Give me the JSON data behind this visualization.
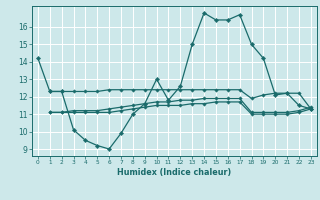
{
  "xlabel": "Humidex (Indice chaleur)",
  "background_color": "#cde8ea",
  "grid_color": "#ffffff",
  "line_color": "#1a6b6b",
  "xlim": [
    -0.5,
    23.5
  ],
  "ylim": [
    8.6,
    17.2
  ],
  "yticks": [
    9,
    10,
    11,
    12,
    13,
    14,
    15,
    16
  ],
  "xticks": [
    0,
    1,
    2,
    3,
    4,
    5,
    6,
    7,
    8,
    9,
    10,
    11,
    12,
    13,
    14,
    15,
    16,
    17,
    18,
    19,
    20,
    21,
    22,
    23
  ],
  "curve1_x": [
    0,
    1,
    2,
    3,
    4,
    5,
    6,
    7,
    8,
    9,
    10,
    11,
    12,
    13,
    14,
    15,
    16,
    17,
    18,
    19,
    20,
    21,
    22,
    23
  ],
  "curve1_y": [
    14.2,
    12.3,
    12.3,
    10.1,
    9.5,
    9.2,
    9.0,
    9.9,
    11.0,
    11.6,
    13.0,
    11.8,
    12.6,
    15.0,
    16.8,
    16.4,
    16.4,
    16.7,
    15.0,
    14.2,
    12.1,
    12.2,
    11.5,
    11.3
  ],
  "curve2_x": [
    1,
    2,
    3,
    4,
    5,
    6,
    7,
    8,
    9,
    10,
    11,
    12,
    13,
    14,
    15,
    16,
    17,
    18,
    19,
    20,
    21,
    22,
    23
  ],
  "curve2_y": [
    12.3,
    12.3,
    12.3,
    12.3,
    12.3,
    12.4,
    12.4,
    12.4,
    12.4,
    12.4,
    12.4,
    12.4,
    12.4,
    12.4,
    12.4,
    12.4,
    12.4,
    11.9,
    12.1,
    12.2,
    12.2,
    12.2,
    11.3
  ],
  "curve3_x": [
    1,
    2,
    3,
    4,
    5,
    6,
    7,
    8,
    9,
    10,
    11,
    12,
    13,
    14,
    15,
    16,
    17,
    18,
    19,
    20,
    21,
    22,
    23
  ],
  "curve3_y": [
    11.1,
    11.1,
    11.2,
    11.2,
    11.2,
    11.3,
    11.4,
    11.5,
    11.6,
    11.7,
    11.7,
    11.8,
    11.8,
    11.9,
    11.9,
    11.9,
    11.9,
    11.1,
    11.1,
    11.1,
    11.1,
    11.2,
    11.4
  ],
  "curve4_x": [
    1,
    2,
    3,
    4,
    5,
    6,
    7,
    8,
    9,
    10,
    11,
    12,
    13,
    14,
    15,
    16,
    17,
    18,
    19,
    20,
    21,
    22,
    23
  ],
  "curve4_y": [
    11.1,
    11.1,
    11.1,
    11.1,
    11.1,
    11.1,
    11.2,
    11.3,
    11.4,
    11.5,
    11.5,
    11.5,
    11.6,
    11.6,
    11.7,
    11.7,
    11.7,
    11.0,
    11.0,
    11.0,
    11.0,
    11.1,
    11.3
  ]
}
